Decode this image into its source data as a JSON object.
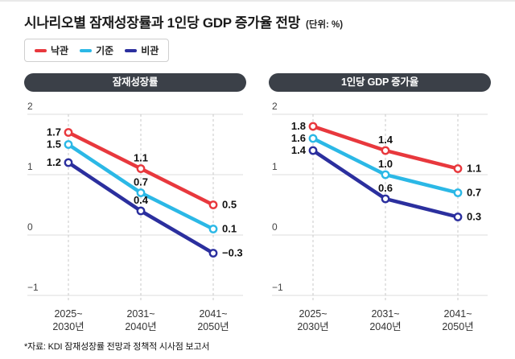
{
  "page": {
    "title": "시나리오별 잠재성장률과 1인당 GDP 증가율 전망",
    "title_unit": "(단위: %)",
    "footnote": "*자료: KDI 잠재성장률 전망과 정책적 시사점 보고서"
  },
  "legend": [
    {
      "label": "낙관",
      "color": "#e8383d"
    },
    {
      "label": "기준",
      "color": "#2bb8e6"
    },
    {
      "label": "비관",
      "color": "#2b2f9e"
    }
  ],
  "chart_data": [
    {
      "type": "line",
      "title": "잠재성장률",
      "unit": "%",
      "categories": [
        "2025~2030년",
        "2031~2040년",
        "2041~2050년"
      ],
      "series": [
        {
          "name": "낙관",
          "color": "#e8383d",
          "values": [
            1.7,
            1.1,
            0.5
          ]
        },
        {
          "name": "기준",
          "color": "#2bb8e6",
          "values": [
            1.5,
            0.7,
            0.1
          ]
        },
        {
          "name": "비관",
          "color": "#2b2f9e",
          "values": [
            1.2,
            0.4,
            -0.3
          ]
        }
      ],
      "ylim": [
        -1,
        2
      ],
      "yticks": [
        2,
        1,
        0,
        -1
      ],
      "grid": "horizontal-solid vertical-dashed",
      "legend_position": "top-left-shared"
    },
    {
      "type": "line",
      "title": "1인당 GDP 증가율",
      "unit": "%",
      "categories": [
        "2025~2030년",
        "2031~2040년",
        "2041~2050년"
      ],
      "series": [
        {
          "name": "낙관",
          "color": "#e8383d",
          "values": [
            1.8,
            1.4,
            1.1
          ]
        },
        {
          "name": "기준",
          "color": "#2bb8e6",
          "values": [
            1.6,
            1.0,
            0.7
          ]
        },
        {
          "name": "비관",
          "color": "#2b2f9e",
          "values": [
            1.4,
            0.6,
            0.3
          ]
        }
      ],
      "ylim": [
        -1,
        2
      ],
      "yticks": [
        2,
        1,
        0,
        -1
      ],
      "grid": "horizontal-solid vertical-dashed",
      "legend_position": "top-left-shared"
    }
  ]
}
